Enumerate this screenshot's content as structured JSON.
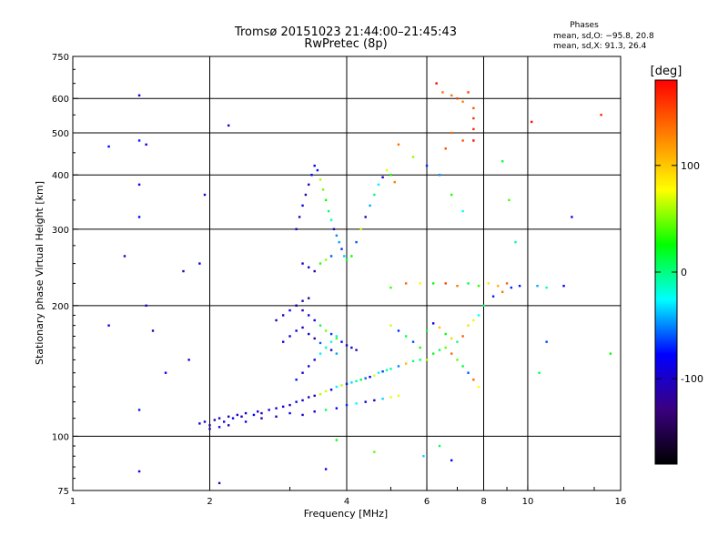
{
  "chart_data": {
    "type": "scatter",
    "title_line1": "Tromsø 20151023 21:44:00–21:45:43",
    "title_line2": "RwPretec (8p)",
    "xlabel": "Frequency [MHz]",
    "ylabel": "Stationary phase Virtual Height [km]",
    "x_scale": "log",
    "y_scale": "log",
    "xlim": [
      1,
      16
    ],
    "ylim": [
      75,
      750
    ],
    "x_ticks": [
      {
        "value": 1,
        "label": "1"
      },
      {
        "value": 2,
        "label": "2"
      },
      {
        "value": 4,
        "label": "4"
      },
      {
        "value": 6,
        "label": "6"
      },
      {
        "value": 8,
        "label": "8"
      },
      {
        "value": 10,
        "label": "10"
      },
      {
        "value": 16,
        "label": "16"
      }
    ],
    "y_ticks": [
      {
        "value": 75,
        "label": "75"
      },
      {
        "value": 100,
        "label": "100"
      },
      {
        "value": 200,
        "label": "200"
      },
      {
        "value": 300,
        "label": "300"
      },
      {
        "value": 400,
        "label": "400"
      },
      {
        "value": 500,
        "label": "500"
      },
      {
        "value": 600,
        "label": "600"
      },
      {
        "value": 750,
        "label": "750"
      }
    ],
    "x_grid": [
      2,
      4,
      6,
      8,
      10
    ],
    "y_grid": [
      100,
      200,
      300,
      400,
      500,
      600
    ],
    "grid": true,
    "stats": {
      "heading": "Phases",
      "line_o": "mean, sd,O: −95.8, 20.8",
      "line_x": "mean, sd,X:  91.3, 26.4"
    },
    "colorbar": {
      "label": "[deg]",
      "range": [
        -180,
        180
      ],
      "ticks": [
        {
          "value": 100,
          "label": "100"
        },
        {
          "value": 0,
          "label": "0"
        },
        {
          "value": -100,
          "label": "-100"
        }
      ],
      "stops": [
        "#000000",
        "#3a0080",
        "#0000ff",
        "#00ffff",
        "#00ff00",
        "#ffff00",
        "#ff8000",
        "#ff0000"
      ],
      "placement": "right"
    },
    "series": [
      {
        "points": [
          [
            1.9,
            107
          ],
          [
            1.95,
            108
          ],
          [
            2.0,
            106
          ],
          [
            2.05,
            109
          ],
          [
            2.1,
            110
          ],
          [
            2.15,
            108
          ],
          [
            2.2,
            111
          ],
          [
            2.25,
            110
          ],
          [
            2.3,
            112
          ],
          [
            2.35,
            111
          ],
          [
            2.4,
            113
          ],
          [
            2.5,
            112
          ],
          [
            2.55,
            114
          ],
          [
            2.6,
            113
          ],
          [
            2.7,
            115
          ],
          [
            2.8,
            116
          ],
          [
            2.9,
            117
          ],
          [
            3.0,
            118
          ],
          [
            3.1,
            120
          ],
          [
            3.2,
            121
          ],
          [
            3.3,
            123
          ],
          [
            3.4,
            124
          ],
          [
            3.5,
            125
          ],
          [
            3.6,
            127
          ],
          [
            3.7,
            128
          ],
          [
            3.8,
            130
          ],
          [
            3.9,
            131
          ],
          [
            4.0,
            132
          ],
          [
            4.1,
            133
          ],
          [
            4.2,
            134
          ],
          [
            4.3,
            135
          ],
          [
            4.4,
            136
          ],
          [
            4.5,
            137
          ],
          [
            4.6,
            138
          ],
          [
            4.7,
            140
          ],
          [
            4.8,
            141
          ],
          [
            4.9,
            142
          ],
          [
            5.0,
            143
          ],
          [
            5.2,
            145
          ],
          [
            5.4,
            147
          ],
          [
            5.6,
            149
          ],
          [
            5.8,
            150
          ],
          [
            2.0,
            104
          ],
          [
            2.1,
            105
          ],
          [
            2.2,
            106
          ],
          [
            2.4,
            108
          ],
          [
            2.6,
            110
          ],
          [
            2.8,
            111
          ],
          [
            3.0,
            113
          ],
          [
            3.2,
            112
          ],
          [
            3.4,
            114
          ],
          [
            3.6,
            115
          ],
          [
            3.8,
            116
          ],
          [
            4.0,
            118
          ],
          [
            4.2,
            119
          ],
          [
            4.4,
            120
          ],
          [
            4.6,
            121
          ],
          [
            4.8,
            122
          ],
          [
            5.0,
            123
          ],
          [
            5.2,
            124
          ],
          [
            3.1,
            135
          ],
          [
            3.2,
            140
          ],
          [
            3.3,
            145
          ],
          [
            3.4,
            150
          ],
          [
            3.5,
            155
          ],
          [
            3.6,
            160
          ],
          [
            3.7,
            165
          ],
          [
            3.8,
            170
          ],
          [
            3.1,
            300
          ],
          [
            3.15,
            320
          ],
          [
            3.2,
            340
          ],
          [
            3.25,
            360
          ],
          [
            3.3,
            380
          ],
          [
            3.35,
            400
          ],
          [
            3.4,
            420
          ],
          [
            3.45,
            410
          ],
          [
            3.5,
            390
          ],
          [
            3.55,
            370
          ],
          [
            3.6,
            350
          ],
          [
            3.65,
            330
          ],
          [
            3.7,
            315
          ],
          [
            3.75,
            300
          ],
          [
            3.8,
            290
          ],
          [
            3.85,
            280
          ],
          [
            3.9,
            270
          ],
          [
            3.95,
            260
          ],
          [
            4.0,
            255
          ],
          [
            4.1,
            260
          ],
          [
            4.2,
            280
          ],
          [
            4.3,
            300
          ],
          [
            4.4,
            320
          ],
          [
            4.5,
            340
          ],
          [
            4.6,
            360
          ],
          [
            4.7,
            380
          ],
          [
            4.8,
            395
          ],
          [
            4.9,
            410
          ],
          [
            5.0,
            400
          ],
          [
            5.1,
            385
          ],
          [
            3.2,
            250
          ],
          [
            3.3,
            245
          ],
          [
            3.4,
            240
          ],
          [
            3.5,
            250
          ],
          [
            3.6,
            255
          ],
          [
            3.7,
            260
          ],
          [
            3.1,
            200
          ],
          [
            3.2,
            195
          ],
          [
            3.3,
            190
          ],
          [
            3.4,
            185
          ],
          [
            3.5,
            180
          ],
          [
            3.6,
            175
          ],
          [
            3.7,
            172
          ],
          [
            3.8,
            168
          ],
          [
            3.9,
            165
          ],
          [
            4.0,
            162
          ],
          [
            4.1,
            160
          ],
          [
            4.2,
            158
          ],
          [
            2.9,
            165
          ],
          [
            3.0,
            170
          ],
          [
            3.1,
            175
          ],
          [
            3.2,
            178
          ],
          [
            3.3,
            172
          ],
          [
            3.4,
            168
          ],
          [
            3.5,
            164
          ],
          [
            3.6,
            160
          ],
          [
            3.7,
            158
          ],
          [
            3.8,
            155
          ],
          [
            2.8,
            185
          ],
          [
            2.9,
            190
          ],
          [
            3.0,
            195
          ],
          [
            3.1,
            200
          ],
          [
            3.2,
            205
          ],
          [
            3.3,
            208
          ],
          [
            5.0,
            180
          ],
          [
            5.2,
            175
          ],
          [
            5.4,
            170
          ],
          [
            5.6,
            165
          ],
          [
            5.8,
            160
          ],
          [
            6.0,
            175
          ],
          [
            6.2,
            182
          ],
          [
            6.4,
            178
          ],
          [
            6.6,
            172
          ],
          [
            6.8,
            168
          ],
          [
            7.0,
            165
          ],
          [
            7.2,
            170
          ],
          [
            7.4,
            180
          ],
          [
            7.6,
            185
          ],
          [
            7.8,
            190
          ],
          [
            8.0,
            200
          ],
          [
            8.4,
            210
          ],
          [
            8.8,
            215
          ],
          [
            9.2,
            220
          ],
          [
            9.6,
            222
          ],
          [
            10.5,
            222
          ],
          [
            11.0,
            220
          ],
          [
            12.0,
            222
          ],
          [
            6.0,
            150
          ],
          [
            6.2,
            155
          ],
          [
            6.4,
            158
          ],
          [
            6.6,
            160
          ],
          [
            6.8,
            155
          ],
          [
            7.0,
            150
          ],
          [
            7.2,
            145
          ],
          [
            7.4,
            140
          ],
          [
            7.6,
            135
          ],
          [
            7.8,
            130
          ],
          [
            5.0,
            220
          ],
          [
            5.4,
            225
          ],
          [
            5.8,
            225
          ],
          [
            6.2,
            225
          ],
          [
            6.6,
            225
          ],
          [
            7.0,
            222
          ],
          [
            7.4,
            225
          ],
          [
            7.8,
            222
          ],
          [
            8.2,
            225
          ],
          [
            8.6,
            222
          ],
          [
            9.0,
            225
          ],
          [
            1.4,
            610
          ],
          [
            1.4,
            480
          ],
          [
            1.4,
            380
          ],
          [
            1.4,
            320
          ],
          [
            1.45,
            200
          ],
          [
            1.5,
            175
          ],
          [
            1.4,
            115
          ],
          [
            1.4,
            83
          ],
          [
            1.2,
            180
          ],
          [
            1.8,
            150
          ],
          [
            1.6,
            140
          ],
          [
            1.9,
            250
          ],
          [
            1.3,
            260
          ],
          [
            2.2,
            520
          ],
          [
            1.2,
            465
          ],
          [
            1.45,
            470
          ],
          [
            1.75,
            240
          ],
          [
            1.95,
            360
          ],
          [
            6.3,
            650
          ],
          [
            6.5,
            620
          ],
          [
            6.8,
            610
          ],
          [
            7.0,
            600
          ],
          [
            7.2,
            590
          ],
          [
            7.4,
            620
          ],
          [
            7.6,
            570
          ],
          [
            7.6,
            540
          ],
          [
            7.6,
            510
          ],
          [
            7.6,
            480
          ],
          [
            7.2,
            480
          ],
          [
            6.8,
            500
          ],
          [
            6.6,
            460
          ],
          [
            5.2,
            470
          ],
          [
            5.6,
            440
          ],
          [
            6.0,
            420
          ],
          [
            6.4,
            400
          ],
          [
            6.8,
            360
          ],
          [
            7.2,
            330
          ],
          [
            8.8,
            430
          ],
          [
            9.1,
            350
          ],
          [
            9.4,
            280
          ],
          [
            12.5,
            320
          ],
          [
            14.5,
            550
          ],
          [
            15.2,
            155
          ],
          [
            10.2,
            530
          ],
          [
            11.0,
            165
          ],
          [
            10.6,
            140
          ],
          [
            5.9,
            90
          ],
          [
            6.4,
            95
          ],
          [
            6.8,
            88
          ],
          [
            3.6,
            84
          ],
          [
            3.8,
            98
          ],
          [
            4.6,
            92
          ],
          [
            2.1,
            78
          ]
        ]
      }
    ]
  }
}
